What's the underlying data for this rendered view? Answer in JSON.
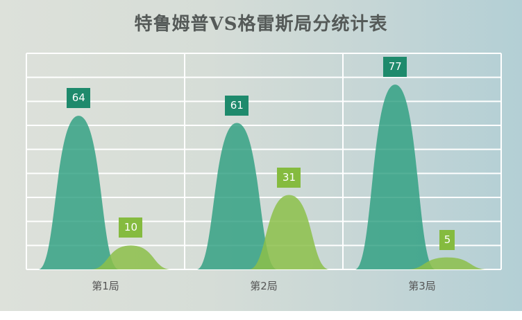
{
  "chart_data": {
    "type": "area",
    "title": "特鲁姆普VS格雷斯局分统计表",
    "categories": [
      "第1局",
      "第2局",
      "第3局"
    ],
    "series": [
      {
        "name": "特鲁姆普",
        "values": [
          64,
          61,
          77
        ],
        "color": "#2a9d7e",
        "label_color": "#1e8a6c"
      },
      {
        "name": "格雷斯",
        "values": [
          10,
          31,
          5
        ],
        "color": "#8cc04a",
        "label_color": "#85bb3f"
      }
    ],
    "xlabel": "",
    "ylabel": "",
    "ylim": [
      0,
      90
    ],
    "y_gridlines": [
      0,
      10,
      20,
      30,
      40,
      50,
      60,
      70,
      80,
      90
    ],
    "grid": true,
    "legend": "none"
  },
  "labels": {
    "s1": [
      "64",
      "61",
      "77"
    ],
    "s2": [
      "10",
      "31",
      "5"
    ]
  }
}
